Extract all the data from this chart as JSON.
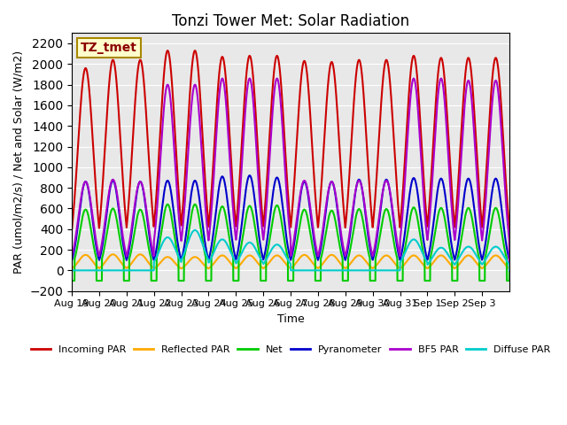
{
  "title": "Tonzi Tower Met: Solar Radiation",
  "ylabel": "PAR (umol/m2/s) / Net and Solar (W/m2)",
  "xlabel": "Time",
  "annotation": "TZ_tmet",
  "ylim": [
    -200,
    2300
  ],
  "yticks": [
    -200,
    0,
    200,
    400,
    600,
    800,
    1000,
    1200,
    1400,
    1600,
    1800,
    2000,
    2200
  ],
  "xtick_labels": [
    "Aug 19",
    "Aug 20",
    "Aug 21",
    "Aug 22",
    "Aug 23",
    "Aug 24",
    "Aug 25",
    "Aug 26",
    "Aug 27",
    "Aug 28",
    "Aug 29",
    "Aug 30",
    "Aug 31",
    "Sep 1",
    "Sep 2",
    "Sep 3"
  ],
  "series": {
    "Incoming PAR": {
      "color": "#cc0000",
      "lw": 1.5
    },
    "Reflected PAR": {
      "color": "#ffaa00",
      "lw": 1.5
    },
    "Net": {
      "color": "#00cc00",
      "lw": 1.5
    },
    "Pyranometer": {
      "color": "#0000cc",
      "lw": 1.5
    },
    "BF5 PAR": {
      "color": "#aa00cc",
      "lw": 1.5
    },
    "Diffuse PAR": {
      "color": "#00cccc",
      "lw": 1.5
    }
  },
  "incoming_peaks": [
    1960,
    2040,
    2040,
    2130,
    2130,
    2070,
    2080,
    2080,
    2030,
    2020,
    2040,
    2040,
    2080,
    2060,
    2060,
    2060
  ],
  "reflected_peaks": [
    150,
    155,
    155,
    130,
    130,
    145,
    145,
    145,
    150,
    150,
    145,
    145,
    145,
    145,
    145,
    145
  ],
  "net_peaks": [
    590,
    600,
    590,
    640,
    640,
    620,
    625,
    630,
    590,
    580,
    595,
    595,
    610,
    605,
    605,
    605
  ],
  "pyranometer_peaks": [
    860,
    870,
    860,
    870,
    870,
    910,
    920,
    900,
    860,
    860,
    880,
    880,
    895,
    890,
    890,
    890
  ],
  "bf5_peaks": [
    860,
    880,
    860,
    1800,
    1800,
    1860,
    1860,
    1860,
    870,
    860,
    870,
    870,
    1860,
    1860,
    1840,
    1840
  ],
  "diffuse_peaks": [
    0,
    0,
    0,
    320,
    390,
    300,
    270,
    250,
    0,
    0,
    0,
    0,
    300,
    220,
    230,
    230
  ],
  "net_min": -100,
  "n_days": 16,
  "pts_per_day": 200,
  "bg_color": "#e8e8e8",
  "fig_bg": "#ffffff"
}
